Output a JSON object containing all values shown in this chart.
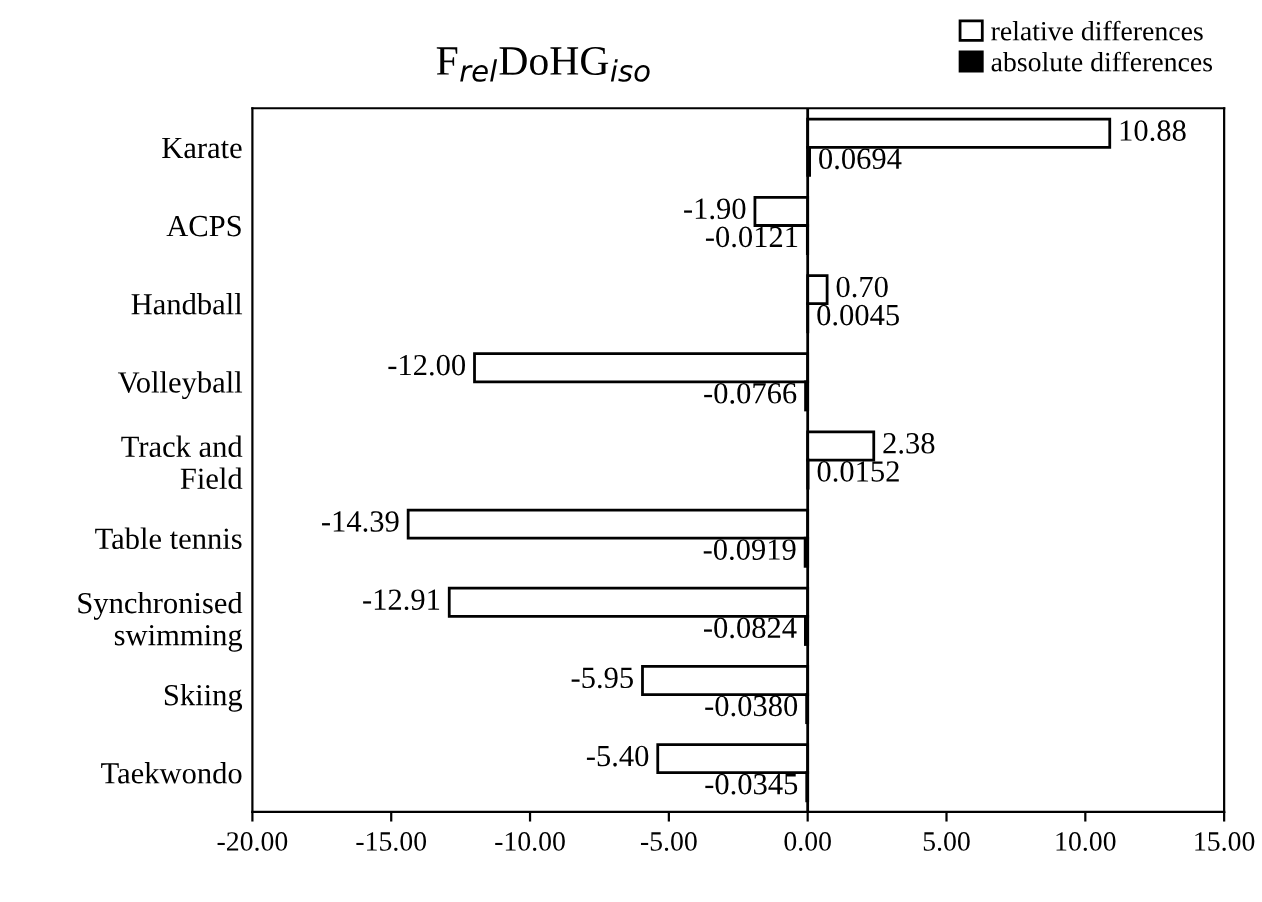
{
  "chart_data": {
    "type": "bar",
    "orientation": "horizontal",
    "title": "F$_{rel}$DoHG$_{iso}$",
    "categories": [
      "Karate",
      "ACPS",
      "Handball",
      "Volleyball",
      "Track and\nField",
      "Table tennis",
      "Synchronised\nswimming",
      "Skiing",
      "Taekwondo"
    ],
    "series": [
      {
        "name": "relative differences",
        "color": "#ffffff",
        "values": [
          10.88,
          -1.9,
          0.7,
          -12.0,
          2.38,
          -14.39,
          -12.91,
          -5.95,
          -5.4
        ],
        "value_labels": [
          "10.88",
          "-1.90",
          "0.70",
          "-12.00",
          "2.38",
          "-14.39",
          "-12.91",
          "-5.95",
          "-5.40"
        ]
      },
      {
        "name": "absolute differences",
        "color": "#000000",
        "values": [
          0.0694,
          -0.0121,
          0.0045,
          -0.0766,
          0.0152,
          -0.0919,
          -0.0824,
          -0.038,
          -0.0345
        ],
        "value_labels": [
          "0.0694",
          "-0.0121",
          "0.0045",
          "-0.0766",
          "0.0152",
          "-0.0919",
          "-0.0824",
          "-0.0380",
          "-0.0345"
        ]
      }
    ],
    "xlim": [
      -20,
      15
    ],
    "xticks": [
      {
        "value": -20,
        "label": "-20.00"
      },
      {
        "value": -15,
        "label": "-15.00"
      },
      {
        "value": -10,
        "label": "-10.00"
      },
      {
        "value": -5,
        "label": "-5.00"
      },
      {
        "value": 0,
        "label": "0.00"
      },
      {
        "value": 5,
        "label": "5.00"
      },
      {
        "value": 10,
        "label": "10.00"
      },
      {
        "value": 15,
        "label": "15.00"
      }
    ],
    "ref_lines": [
      {
        "axis": "x",
        "value": 0,
        "color": "#000000"
      }
    ],
    "legend": "top right",
    "grid": false
  }
}
